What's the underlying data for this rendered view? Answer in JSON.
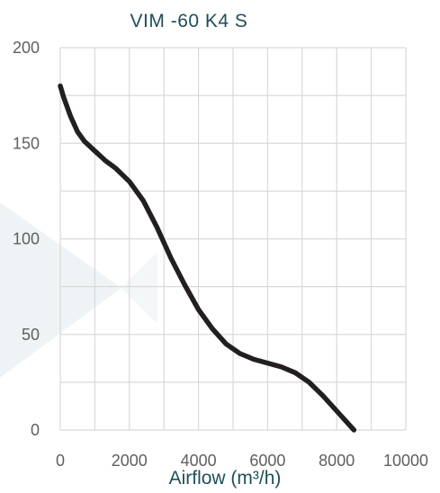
{
  "chart_data": {
    "type": "line",
    "title": "VIM -60 K4 S",
    "xlabel": "Airflow (m³/h)",
    "ylabel": "",
    "xlim": [
      0,
      10000
    ],
    "ylim": [
      0,
      200
    ],
    "x_ticks": [
      "0",
      "2000",
      "4000",
      "6000",
      "8000",
      "10000"
    ],
    "y_ticks": [
      "0",
      "50",
      "100",
      "150",
      "200"
    ],
    "grid": true,
    "legend": "none",
    "series": [
      {
        "color": "#231f20",
        "x": [
          0,
          100,
          300,
          500,
          700,
          1000,
          1300,
          1600,
          2000,
          2400,
          2800,
          3200,
          3600,
          4000,
          4400,
          4800,
          5200,
          5600,
          6000,
          6400,
          6800,
          7200,
          7600,
          8000,
          8300,
          8500
        ],
        "y": [
          180,
          174,
          164,
          156,
          151,
          146,
          141,
          137,
          130,
          120,
          106,
          90,
          76,
          63,
          53,
          45,
          40,
          37,
          35,
          33,
          30,
          25,
          18,
          10,
          4,
          0
        ]
      }
    ]
  }
}
